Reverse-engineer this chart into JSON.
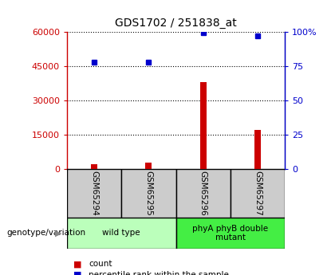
{
  "title": "GDS1702 / 251838_at",
  "categories": [
    "GSM65294",
    "GSM65295",
    "GSM65296",
    "GSM65297"
  ],
  "counts": [
    2200,
    2800,
    38000,
    17000
  ],
  "percentiles": [
    78,
    78,
    99,
    97
  ],
  "groups": [
    {
      "label": "wild type",
      "indices": [
        0,
        1
      ],
      "color": "#bbffbb"
    },
    {
      "label": "phyA phyB double\nmutant",
      "indices": [
        2,
        3
      ],
      "color": "#44ee44"
    }
  ],
  "left_yticks": [
    0,
    15000,
    30000,
    45000,
    60000
  ],
  "right_yticks": [
    0,
    25,
    50,
    75,
    100
  ],
  "left_ylim": [
    0,
    60000
  ],
  "right_ylim": [
    0,
    100
  ],
  "bar_color": "#cc0000",
  "dot_color": "#0000cc",
  "grid_color": "#000000",
  "box_bg_color": "#cccccc",
  "legend_count_color": "#cc0000",
  "legend_pct_color": "#0000cc",
  "genotype_label": "genotype/variation",
  "legend_count_label": "count",
  "legend_pct_label": "percentile rank within the sample",
  "bar_width": 0.12
}
